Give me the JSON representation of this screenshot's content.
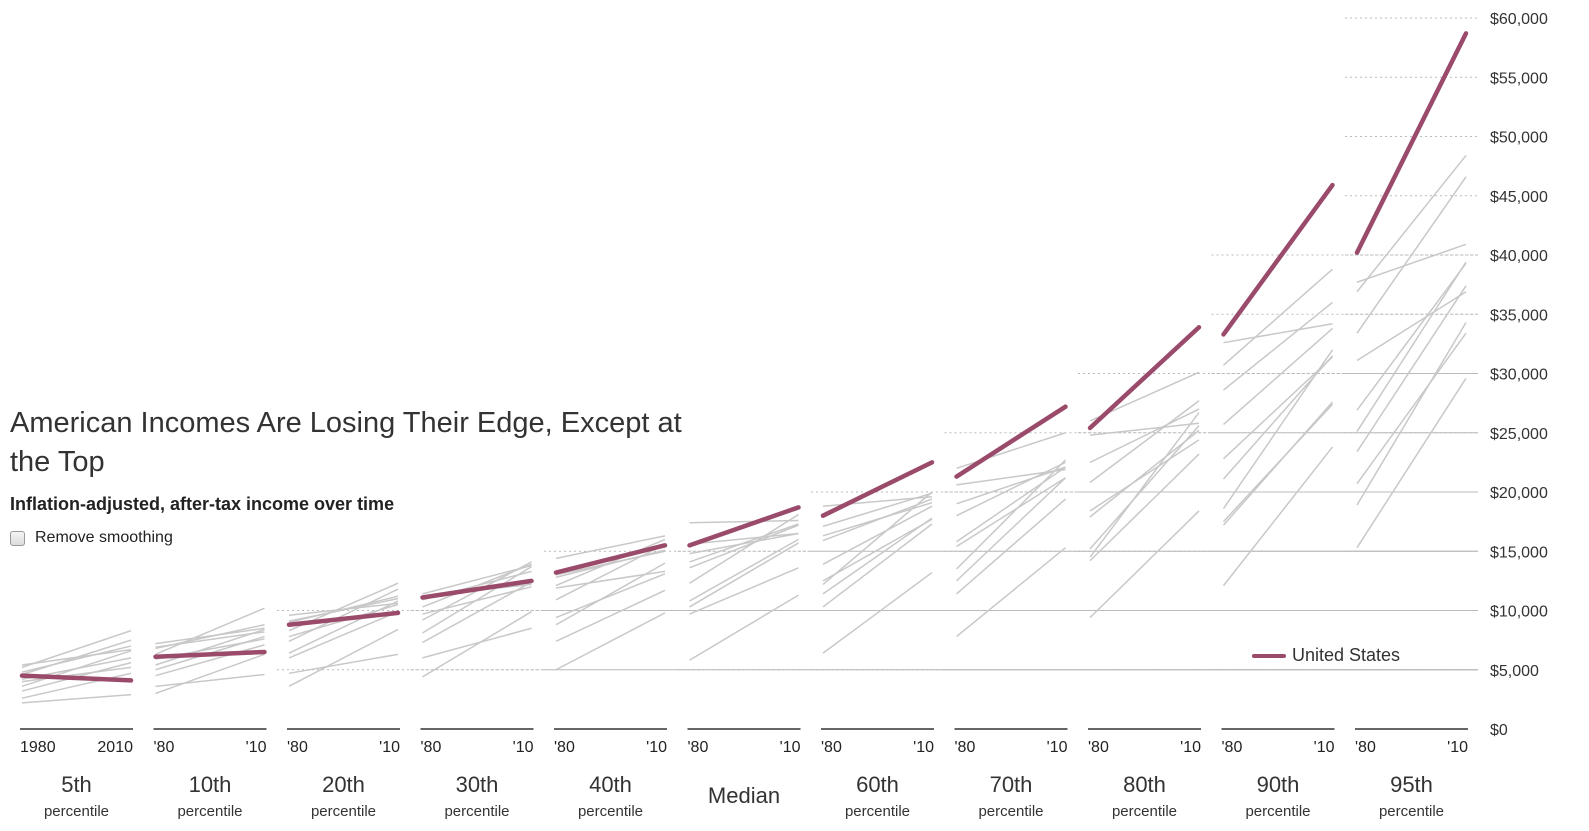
{
  "header": {
    "title": "American Incomes Are Losing Their Edge, Except at the Top",
    "subtitle": "Inflation-adjusted, after-tax income over time"
  },
  "controls": {
    "smoothing_label": "Remove smoothing",
    "smoothing_checked": false
  },
  "legend": {
    "label": "United States"
  },
  "colors": {
    "highlight": "#9a4a6a",
    "others": "#c8c8c8",
    "grid": "#bbbbbb",
    "axis": "#333333"
  },
  "chart_data": {
    "type": "line",
    "title": "American Incomes Are Losing Their Edge, Except at the Top",
    "subtitle": "Inflation-adjusted, after-tax income over time",
    "x_range": [
      1980,
      2010
    ],
    "ylim": [
      0,
      60000
    ],
    "y_ticks": [
      0,
      5000,
      10000,
      15000,
      20000,
      25000,
      30000,
      35000,
      40000,
      45000,
      50000,
      55000,
      60000
    ],
    "y_tick_labels": [
      "$0",
      "$5,000",
      "$10,000",
      "$15,000",
      "$20,000",
      "$25,000",
      "$30,000",
      "$35,000",
      "$40,000",
      "$45,000",
      "$50,000",
      "$55,000",
      "$60,000"
    ],
    "grid": "dotted horizontal",
    "legend_position": "bottom-right",
    "panels": [
      {
        "name": "5th",
        "sub": "percentile",
        "start_label": "1980",
        "end_label": "2010",
        "grid_top": 0,
        "us": [
          4500,
          4100
        ],
        "others": [
          [
            4600,
            7500
          ],
          [
            2200,
            2900
          ],
          [
            3600,
            6600
          ],
          [
            5200,
            8300
          ],
          [
            4000,
            5200
          ],
          [
            4800,
            7000
          ],
          [
            2600,
            4700
          ],
          [
            3200,
            5600
          ],
          [
            5400,
            6700
          ],
          [
            4200,
            6000
          ]
        ]
      },
      {
        "name": "10th",
        "sub": "percentile",
        "start_label": "'80",
        "end_label": "'10",
        "grid_top": 0,
        "us": [
          6100,
          6500
        ],
        "others": [
          [
            6800,
            8800
          ],
          [
            3600,
            4600
          ],
          [
            5400,
            8400
          ],
          [
            7200,
            8500
          ],
          [
            4500,
            7100
          ],
          [
            6300,
            10200
          ],
          [
            3000,
            6300
          ],
          [
            5900,
            7600
          ],
          [
            6900,
            8200
          ],
          [
            5000,
            7800
          ]
        ]
      },
      {
        "name": "20th",
        "sub": "percentile",
        "start_label": "'80",
        "end_label": "'10",
        "grid_top": 10000,
        "us": [
          8800,
          9800
        ],
        "others": [
          [
            9000,
            11200
          ],
          [
            4700,
            6300
          ],
          [
            7400,
            11800
          ],
          [
            9600,
            10600
          ],
          [
            6000,
            9900
          ],
          [
            8300,
            12300
          ],
          [
            3600,
            8400
          ],
          [
            7800,
            10500
          ],
          [
            9100,
            11000
          ],
          [
            6400,
            10800
          ]
        ]
      },
      {
        "name": "30th",
        "sub": "percentile",
        "start_label": "'80",
        "end_label": "'10",
        "grid_top": 10000,
        "us": [
          11100,
          12500
        ],
        "others": [
          [
            11400,
            13800
          ],
          [
            6000,
            8500
          ],
          [
            9200,
            14100
          ],
          [
            10900,
            13300
          ],
          [
            7300,
            12400
          ],
          [
            10300,
            13900
          ],
          [
            4400,
            9900
          ],
          [
            9700,
            12000
          ],
          [
            11200,
            12200
          ],
          [
            8100,
            13700
          ]
        ]
      },
      {
        "name": "40th",
        "sub": "percentile",
        "start_label": "'80",
        "end_label": "'10",
        "grid_top": 15000,
        "us": [
          13200,
          15500
        ],
        "others": [
          [
            14400,
            16300
          ],
          [
            7400,
            11700
          ],
          [
            10900,
            15600
          ],
          [
            13000,
            15000
          ],
          [
            8800,
            14000
          ],
          [
            12100,
            16000
          ],
          [
            5000,
            9800
          ],
          [
            11900,
            13300
          ],
          [
            12800,
            15100
          ],
          [
            9400,
            13100
          ]
        ]
      },
      {
        "name": "Median",
        "sub": "",
        "start_label": "'80",
        "end_label": "'10",
        "grid_top": 15000,
        "us": [
          15500,
          18700
        ],
        "others": [
          [
            17400,
            17600
          ],
          [
            9700,
            13600
          ],
          [
            12300,
            18100
          ],
          [
            15600,
            16500
          ],
          [
            10300,
            15700
          ],
          [
            14100,
            17300
          ],
          [
            5800,
            11300
          ],
          [
            13600,
            17200
          ],
          [
            14800,
            16500
          ],
          [
            10800,
            16000
          ]
        ]
      },
      {
        "name": "60th",
        "sub": "percentile",
        "start_label": "'80",
        "end_label": "'10",
        "grid_top": 20000,
        "us": [
          18000,
          22500
        ],
        "others": [
          [
            18800,
            19600
          ],
          [
            11400,
            17800
          ],
          [
            13900,
            18800
          ],
          [
            16300,
            19100
          ],
          [
            10300,
            17300
          ],
          [
            15900,
            19400
          ],
          [
            6400,
            13200
          ],
          [
            12500,
            17700
          ],
          [
            17100,
            19900
          ],
          [
            12200,
            20000
          ]
        ]
      },
      {
        "name": "70th",
        "sub": "percentile",
        "start_label": "'80",
        "end_label": "'10",
        "grid_top": 25000,
        "us": [
          21300,
          27200
        ],
        "others": [
          [
            22000,
            25000
          ],
          [
            12500,
            21200
          ],
          [
            15800,
            22100
          ],
          [
            19000,
            22100
          ],
          [
            11400,
            19400
          ],
          [
            18000,
            22500
          ],
          [
            7800,
            15300
          ],
          [
            15400,
            21200
          ],
          [
            20600,
            21900
          ],
          [
            13500,
            22700
          ]
        ]
      },
      {
        "name": "80th",
        "sub": "percentile",
        "start_label": "'80",
        "end_label": "'10",
        "grid_top": 30000,
        "us": [
          25400,
          33900
        ],
        "others": [
          [
            26000,
            30100
          ],
          [
            15200,
            25600
          ],
          [
            17900,
            25200
          ],
          [
            22500,
            27000
          ],
          [
            14200,
            23200
          ],
          [
            20800,
            27700
          ],
          [
            9400,
            18400
          ],
          [
            18400,
            24400
          ],
          [
            24800,
            25800
          ],
          [
            14500,
            26700
          ]
        ]
      },
      {
        "name": "90th",
        "sub": "percentile",
        "start_label": "'80",
        "end_label": "'10",
        "grid_top": 40000,
        "us": [
          33300,
          45900
        ],
        "others": [
          [
            30700,
            38800
          ],
          [
            18600,
            32000
          ],
          [
            21100,
            31500
          ],
          [
            28600,
            36000
          ],
          [
            17500,
            27400
          ],
          [
            25700,
            33800
          ],
          [
            12100,
            23800
          ],
          [
            22800,
            31400
          ],
          [
            32600,
            34200
          ],
          [
            17200,
            27600
          ]
        ]
      },
      {
        "name": "95th",
        "sub": "percentile",
        "start_label": "'80",
        "end_label": "'10",
        "grid_top": 60000,
        "us": [
          40200,
          58700
        ],
        "others": [
          [
            36900,
            48400
          ],
          [
            23400,
            37400
          ],
          [
            25100,
            39400
          ],
          [
            33400,
            46600
          ],
          [
            20700,
            33400
          ],
          [
            31100,
            36900
          ],
          [
            15300,
            29600
          ],
          [
            26900,
            39300
          ],
          [
            37700,
            40900
          ],
          [
            18900,
            34300
          ]
        ]
      }
    ]
  }
}
